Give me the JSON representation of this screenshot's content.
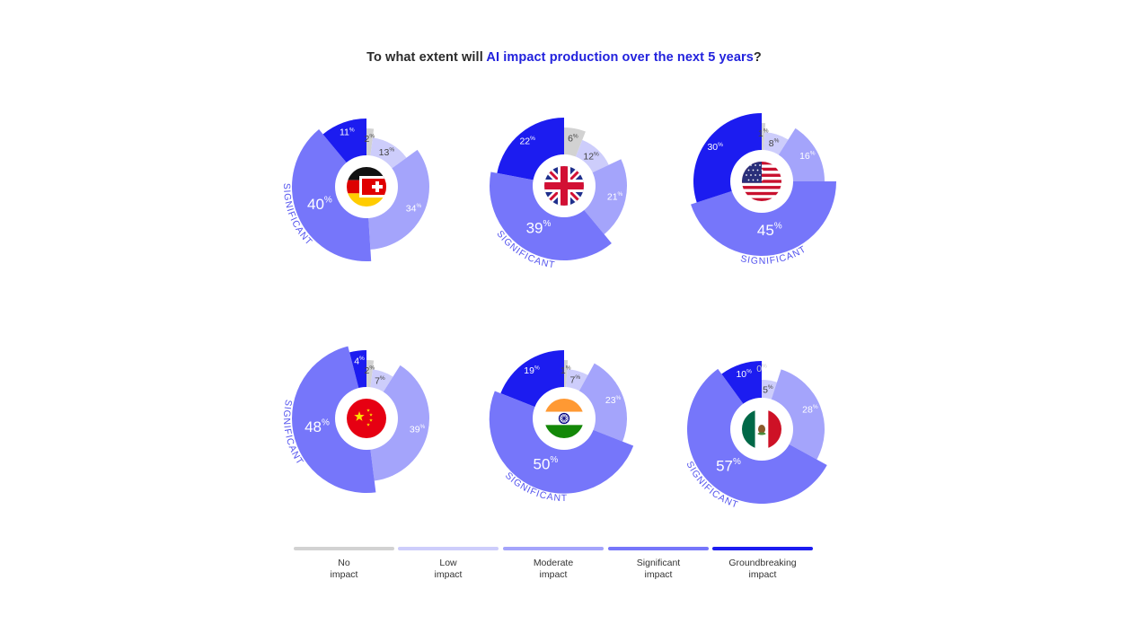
{
  "title": {
    "prefix": "To what extent will ",
    "highlight": "AI impact production over the next 5 years",
    "suffix": "?"
  },
  "colors": {
    "none": "#d2d2d2",
    "low": "#cdcdfb",
    "moderate": "#a4a4fb",
    "significant": "#7676fa",
    "groundbreaking": "#1c1cf0",
    "highlight_text": "#2222dd",
    "significant_label": "#5555ee"
  },
  "legend": [
    {
      "line1": "No",
      "line2": "impact",
      "color": "#d2d2d2"
    },
    {
      "line1": "Low",
      "line2": "impact",
      "color": "#cdcdfb"
    },
    {
      "line1": "Moderate",
      "line2": "impact",
      "color": "#a4a4fb"
    },
    {
      "line1": "Significant",
      "line2": "impact",
      "color": "#7676fa"
    },
    {
      "line1": "Groundbreaking",
      "line2": "impact",
      "color": "#1c1cf0"
    }
  ],
  "significant_label": "SIGNIFICANT",
  "chart_data": {
    "type": "pie",
    "categories": [
      "No impact",
      "Low impact",
      "Moderate impact",
      "Significant impact",
      "Groundbreaking impact"
    ],
    "unit": "%",
    "charts": [
      {
        "flag": "germany-switzerland-flag",
        "values": [
          2,
          13,
          34,
          40,
          11
        ],
        "labels": [
          "2",
          "13",
          "34",
          "40",
          "11"
        ]
      },
      {
        "flag": "uk-flag",
        "values": [
          6,
          12,
          21,
          39,
          22
        ],
        "labels": [
          "6",
          "12",
          "21",
          "39",
          "22"
        ]
      },
      {
        "flag": "usa-flag",
        "values": [
          1,
          8,
          16,
          45,
          30
        ],
        "labels": [
          "1",
          "8",
          "16",
          "45",
          "30"
        ]
      },
      {
        "flag": "china-flag",
        "values": [
          2,
          7,
          39,
          48,
          4
        ],
        "labels": [
          "2",
          "7",
          "39",
          "48",
          "4"
        ]
      },
      {
        "flag": "india-flag",
        "values": [
          1,
          7,
          23,
          50,
          19
        ],
        "labels": [
          "1",
          "7",
          "23",
          "50",
          "19"
        ]
      },
      {
        "flag": "mexico-flag",
        "values": [
          0,
          5,
          28,
          57,
          10
        ],
        "labels": [
          "0",
          "5",
          "28",
          "57",
          "10"
        ]
      }
    ]
  }
}
